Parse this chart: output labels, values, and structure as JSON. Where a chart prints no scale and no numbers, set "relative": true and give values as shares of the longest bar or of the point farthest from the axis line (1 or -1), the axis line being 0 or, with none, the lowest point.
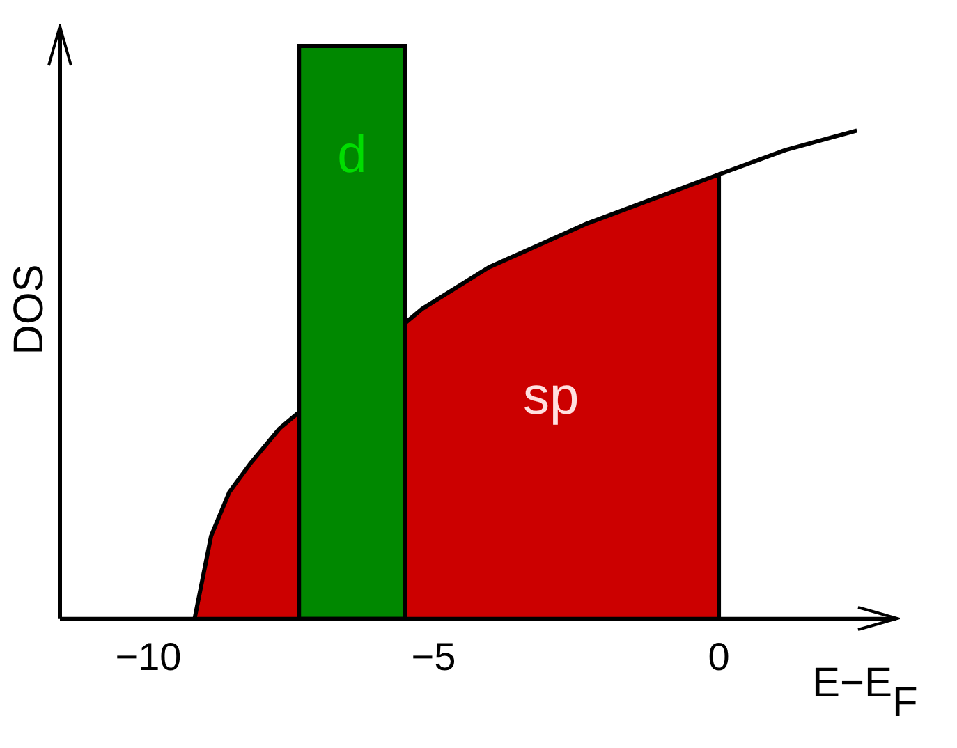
{
  "chart_data": {
    "type": "area",
    "xlabel": "E−E$_{F}$",
    "ylabel": "DOS",
    "relative": true,
    "xlim": [
      -11.55,
      3.1
    ],
    "xticks": [
      -10,
      -5,
      0
    ],
    "grid": false,
    "legend": false,
    "marker": "none",
    "series": [
      {
        "name": "sp",
        "color": "#cc0000",
        "x": [
          -9.19,
          -8.9,
          -8.58,
          -8.2,
          -7.7,
          -5.2,
          -4.03,
          -2.3,
          0,
          0
        ],
        "values": [
          0,
          0.17,
          0.26,
          0.32,
          0.39,
          0.635,
          0.72,
          0.81,
          0.91,
          0
        ]
      },
      {
        "type": "line",
        "color": "#000000",
        "x": [
          0,
          1.17,
          2.42
        ],
        "values": [
          0.91,
          0.96,
          1.0
        ]
      }
    ],
    "bands": [
      {
        "axis": "x",
        "from": -7.36,
        "to": -5.5,
        "label": "d",
        "color": "#008800"
      }
    ]
  }
}
